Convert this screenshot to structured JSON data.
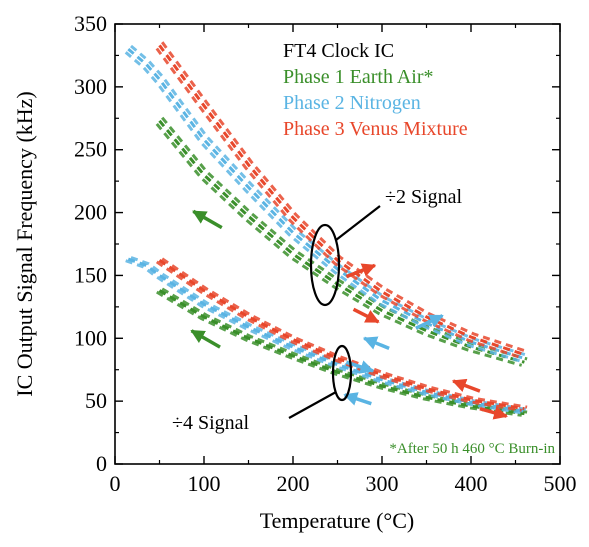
{
  "chart_data": {
    "type": "line",
    "title": "FT4 Clock IC",
    "xlabel": "Temperature (°C)",
    "ylabel": "IC Output Signal Frequency (kHz)",
    "xlim": [
      0,
      500
    ],
    "ylim": [
      0,
      350
    ],
    "x_ticks": [
      "0",
      "100",
      "200",
      "300",
      "400",
      "500"
    ],
    "y_ticks": [
      "0",
      "50",
      "100",
      "150",
      "200",
      "250",
      "300",
      "350"
    ],
    "x_tick_values": [
      0,
      100,
      200,
      300,
      400,
      500
    ],
    "y_tick_values": [
      0,
      50,
      100,
      150,
      200,
      250,
      300,
      350
    ],
    "grid": false,
    "legend_position": "top-right",
    "footnote": "*After 50 h 460 °C Burn-in",
    "footnote_color": "#3a8f2a",
    "annotations": [
      {
        "id": "div2",
        "text": "÷2 Signal"
      },
      {
        "id": "div4",
        "text": "÷4 Signal"
      }
    ],
    "series": [
      {
        "name": "Phase 1 Earth Air*",
        "color": "#3a8f2a",
        "div2": [
          [
            50,
            273
          ],
          [
            100,
            230
          ],
          [
            150,
            197
          ],
          [
            200,
            167
          ],
          [
            250,
            143
          ],
          [
            300,
            122
          ],
          [
            350,
            106
          ],
          [
            400,
            93
          ],
          [
            460,
            81
          ]
        ],
        "div4": [
          [
            50,
            138
          ],
          [
            100,
            117
          ],
          [
            150,
            100
          ],
          [
            200,
            86
          ],
          [
            250,
            73
          ],
          [
            300,
            62
          ],
          [
            350,
            53
          ],
          [
            400,
            46
          ],
          [
            460,
            40
          ]
        ],
        "arrows": [
          {
            "from": [
              120,
              188
            ],
            "to": [
              88,
              201
            ],
            "dir": "cooling"
          },
          {
            "from": [
              118,
              93
            ],
            "to": [
              86,
              106
            ],
            "dir": "cooling"
          }
        ]
      },
      {
        "name": "Phase 2 Nitrogen",
        "color": "#5ab4e3",
        "div2": [
          [
            15,
            330
          ],
          [
            35,
            318
          ],
          [
            50,
            306
          ],
          [
            100,
            258
          ],
          [
            150,
            220
          ],
          [
            200,
            184
          ],
          [
            250,
            155
          ],
          [
            300,
            130
          ],
          [
            350,
            112
          ],
          [
            400,
            97
          ],
          [
            460,
            84
          ]
        ],
        "div4": [
          [
            15,
            163
          ],
          [
            35,
            158
          ],
          [
            50,
            150
          ],
          [
            100,
            127
          ],
          [
            150,
            109
          ],
          [
            200,
            93
          ],
          [
            250,
            79
          ],
          [
            300,
            67
          ],
          [
            350,
            57
          ],
          [
            400,
            49
          ],
          [
            460,
            42
          ]
        ],
        "arrows": [
          {
            "from": [
              338,
              108
            ],
            "to": [
              368,
              118
            ],
            "dir": "cooling"
          },
          {
            "from": [
              308,
              92
            ],
            "to": [
              280,
              100
            ],
            "dir": "heating"
          },
          {
            "from": [
              260,
              81
            ],
            "to": [
              290,
              74
            ],
            "dir": "cooling"
          },
          {
            "from": [
              288,
              48
            ],
            "to": [
              258,
              55
            ],
            "dir": "heating"
          }
        ]
      },
      {
        "name": "Phase 3 Venus Mixture",
        "color": "#e8472b",
        "div2": [
          [
            50,
            333
          ],
          [
            100,
            285
          ],
          [
            150,
            238
          ],
          [
            200,
            196
          ],
          [
            250,
            162
          ],
          [
            300,
            137
          ],
          [
            350,
            117
          ],
          [
            400,
            101
          ],
          [
            460,
            87
          ]
        ],
        "div4": [
          [
            50,
            162
          ],
          [
            100,
            138
          ],
          [
            150,
            117
          ],
          [
            200,
            99
          ],
          [
            250,
            84
          ],
          [
            300,
            71
          ],
          [
            350,
            60
          ],
          [
            400,
            51
          ],
          [
            460,
            44
          ]
        ],
        "arrows": [
          {
            "from": [
              260,
              149
            ],
            "to": [
              292,
              158
            ],
            "dir": "heating"
          },
          {
            "from": [
              268,
              123
            ],
            "to": [
              296,
              113
            ],
            "dir": "heating"
          },
          {
            "from": [
              410,
              58
            ],
            "to": [
              380,
              66
            ],
            "dir": "cooling"
          },
          {
            "from": [
              410,
              44
            ],
            "to": [
              440,
              38
            ],
            "dir": "heating"
          }
        ]
      }
    ]
  }
}
